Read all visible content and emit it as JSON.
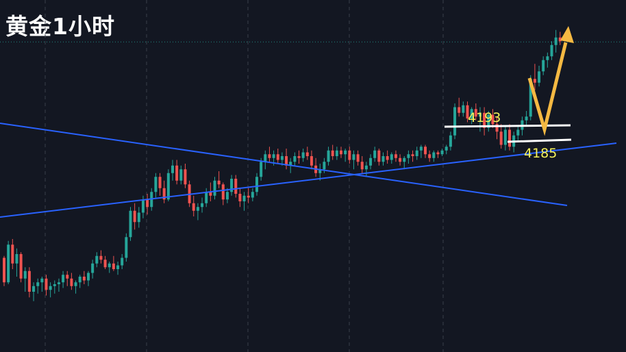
{
  "chart_data": {
    "type": "candlestick",
    "title": "黄金1小时",
    "price_axis_printed": false,
    "levels": [
      {
        "label": "4193",
        "value": 4193
      },
      {
        "label": "4185",
        "value": 4185
      }
    ],
    "colors": {
      "background": "#131722",
      "up": "#26a69a",
      "down": "#ef5350",
      "trendline": "#2962ff",
      "level_line": "#ffffff",
      "level_text": "#f7f35a",
      "projection_arrow": "#f5b942",
      "grid": "#3a3f4b"
    },
    "candles": [
      [
        4123,
        4124,
        4108,
        4110
      ],
      [
        4110,
        4132,
        4109,
        4130
      ],
      [
        4130,
        4133,
        4117,
        4120
      ],
      [
        4120,
        4128,
        4113,
        4125
      ],
      [
        4125,
        4126,
        4110,
        4112
      ],
      [
        4112,
        4118,
        4105,
        4116
      ],
      [
        4116,
        4118,
        4102,
        4105
      ],
      [
        4105,
        4110,
        4100,
        4108
      ],
      [
        4108,
        4112,
        4104,
        4110
      ],
      [
        4110,
        4113,
        4105,
        4112
      ],
      [
        4112,
        4114,
        4103,
        4106
      ],
      [
        4106,
        4110,
        4102,
        4108
      ],
      [
        4108,
        4111,
        4104,
        4109
      ],
      [
        4109,
        4112,
        4105,
        4110
      ],
      [
        4110,
        4116,
        4107,
        4114
      ],
      [
        4114,
        4116,
        4108,
        4112
      ],
      [
        4112,
        4115,
        4106,
        4108
      ],
      [
        4108,
        4111,
        4104,
        4110
      ],
      [
        4110,
        4114,
        4107,
        4113
      ],
      [
        4113,
        4116,
        4109,
        4111
      ],
      [
        4111,
        4116,
        4108,
        4115
      ],
      [
        4115,
        4122,
        4112,
        4120
      ],
      [
        4120,
        4126,
        4118,
        4124
      ],
      [
        4124,
        4127,
        4120,
        4122
      ],
      [
        4122,
        4124,
        4117,
        4118
      ],
      [
        4118,
        4121,
        4115,
        4120
      ],
      [
        4120,
        4124,
        4116,
        4117
      ],
      [
        4117,
        4121,
        4114,
        4119
      ],
      [
        4119,
        4125,
        4117,
        4123
      ],
      [
        4123,
        4136,
        4121,
        4134
      ],
      [
        4134,
        4150,
        4132,
        4148
      ],
      [
        4148,
        4152,
        4138,
        4142
      ],
      [
        4142,
        4150,
        4139,
        4147
      ],
      [
        4147,
        4156,
        4144,
        4154
      ],
      [
        4154,
        4157,
        4146,
        4150
      ],
      [
        4150,
        4160,
        4148,
        4158
      ],
      [
        4158,
        4168,
        4155,
        4166
      ],
      [
        4166,
        4168,
        4156,
        4160
      ],
      [
        4160,
        4164,
        4152,
        4154
      ],
      [
        4154,
        4170,
        4153,
        4168
      ],
      [
        4168,
        4175,
        4164,
        4172
      ],
      [
        4172,
        4175,
        4162,
        4164
      ],
      [
        4164,
        4172,
        4162,
        4170
      ],
      [
        4170,
        4173,
        4160,
        4162
      ],
      [
        4162,
        4164,
        4150,
        4152
      ],
      [
        4152,
        4156,
        4145,
        4148
      ],
      [
        4148,
        4152,
        4143,
        4150
      ],
      [
        4150,
        4155,
        4147,
        4152
      ],
      [
        4152,
        4160,
        4150,
        4158
      ],
      [
        4158,
        4163,
        4153,
        4156
      ],
      [
        4156,
        4166,
        4154,
        4164
      ],
      [
        4164,
        4169,
        4160,
        4162
      ],
      [
        4162,
        4163,
        4151,
        4154
      ],
      [
        4154,
        4160,
        4152,
        4158
      ],
      [
        4158,
        4167,
        4156,
        4165
      ],
      [
        4165,
        4167,
        4155,
        4157
      ],
      [
        4157,
        4160,
        4150,
        4153
      ],
      [
        4153,
        4158,
        4148,
        4156
      ],
      [
        4156,
        4160,
        4152,
        4155
      ],
      [
        4155,
        4160,
        4153,
        4158
      ],
      [
        4158,
        4168,
        4156,
        4166
      ],
      [
        4166,
        4176,
        4164,
        4174
      ],
      [
        4174,
        4180,
        4170,
        4178
      ],
      [
        4178,
        4182,
        4174,
        4176
      ],
      [
        4176,
        4180,
        4172,
        4178
      ],
      [
        4178,
        4181,
        4173,
        4175
      ],
      [
        4175,
        4179,
        4172,
        4177
      ],
      [
        4177,
        4181,
        4170,
        4172
      ],
      [
        4172,
        4176,
        4168,
        4174
      ],
      [
        4174,
        4179,
        4172,
        4177
      ],
      [
        4177,
        4180,
        4173,
        4176
      ],
      [
        4176,
        4181,
        4174,
        4179
      ],
      [
        4179,
        4182,
        4175,
        4177
      ],
      [
        4177,
        4180,
        4170,
        4172
      ],
      [
        4172,
        4176,
        4166,
        4168
      ],
      [
        4168,
        4173,
        4164,
        4170
      ],
      [
        4170,
        4176,
        4168,
        4174
      ],
      [
        4174,
        4182,
        4172,
        4180
      ],
      [
        4180,
        4183,
        4175,
        4177
      ],
      [
        4177,
        4182,
        4175,
        4180
      ],
      [
        4180,
        4182,
        4176,
        4178
      ],
      [
        4178,
        4181,
        4174,
        4180
      ],
      [
        4180,
        4182,
        4173,
        4175
      ],
      [
        4175,
        4180,
        4170,
        4178
      ],
      [
        4178,
        4180,
        4172,
        4174
      ],
      [
        4174,
        4177,
        4168,
        4170
      ],
      [
        4170,
        4174,
        4166,
        4172
      ],
      [
        4172,
        4178,
        4170,
        4176
      ],
      [
        4176,
        4182,
        4174,
        4180
      ],
      [
        4180,
        4181,
        4172,
        4174
      ],
      [
        4174,
        4179,
        4172,
        4177
      ],
      [
        4177,
        4180,
        4173,
        4175
      ],
      [
        4175,
        4179,
        4173,
        4178
      ],
      [
        4178,
        4180,
        4174,
        4176
      ],
      [
        4176,
        4178,
        4172,
        4174
      ],
      [
        4174,
        4177,
        4170,
        4176
      ],
      [
        4176,
        4180,
        4173,
        4178
      ],
      [
        4178,
        4180,
        4174,
        4177
      ],
      [
        4177,
        4182,
        4175,
        4180
      ],
      [
        4180,
        4183,
        4176,
        4182
      ],
      [
        4182,
        4183,
        4176,
        4178
      ],
      [
        4178,
        4180,
        4174,
        4176
      ],
      [
        4176,
        4180,
        4174,
        4179
      ],
      [
        4179,
        4180,
        4176,
        4178
      ],
      [
        4178,
        4181,
        4177,
        4180
      ],
      [
        4180,
        4183,
        4178,
        4182
      ],
      [
        4182,
        4190,
        4180,
        4188
      ],
      [
        4188,
        4205,
        4186,
        4203
      ],
      [
        4203,
        4208,
        4198,
        4200
      ],
      [
        4200,
        4206,
        4198,
        4204
      ],
      [
        4204,
        4206,
        4195,
        4197
      ],
      [
        4197,
        4203,
        4194,
        4202
      ],
      [
        4202,
        4205,
        4196,
        4198
      ],
      [
        4198,
        4203,
        4190,
        4200
      ],
      [
        4200,
        4203,
        4188,
        4192
      ],
      [
        4192,
        4201,
        4190,
        4199
      ],
      [
        4199,
        4202,
        4192,
        4194
      ],
      [
        4194,
        4198,
        4186,
        4190
      ],
      [
        4190,
        4194,
        4181,
        4183
      ],
      [
        4183,
        4193,
        4180,
        4191
      ],
      [
        4191,
        4194,
        4180,
        4182
      ],
      [
        4182,
        4190,
        4179,
        4188
      ],
      [
        4188,
        4193,
        4185,
        4191
      ],
      [
        4191,
        4198,
        4188,
        4196
      ],
      [
        4196,
        4201,
        4193,
        4198
      ],
      [
        4198,
        4220,
        4196,
        4218
      ],
      [
        4218,
        4226,
        4212,
        4216
      ],
      [
        4216,
        4225,
        4214,
        4222
      ],
      [
        4222,
        4230,
        4220,
        4228
      ],
      [
        4228,
        4232,
        4224,
        4230
      ],
      [
        4230,
        4238,
        4228,
        4236
      ],
      [
        4236,
        4244,
        4232,
        4240
      ],
      [
        4240,
        4243,
        4236,
        4238
      ]
    ]
  }
}
